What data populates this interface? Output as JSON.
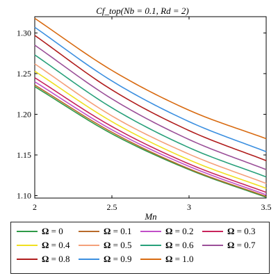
{
  "chart_data": {
    "type": "line",
    "title": "Cf_top(Nb = 0.1, Rd = 2)",
    "xlabel": "Mn",
    "ylabel": "",
    "xlim": [
      2,
      3.5
    ],
    "ylim": [
      1.097,
      1.32
    ],
    "x_ticks": [
      "2",
      "2.5",
      "3",
      "3.5"
    ],
    "y_ticks": [
      "1.10",
      "1.15",
      "1.20",
      "1.25",
      "1.30"
    ],
    "x_tick_values": [
      2,
      2.5,
      3,
      3.5
    ],
    "y_tick_values": [
      1.1,
      1.15,
      1.2,
      1.25,
      1.3
    ],
    "grid": false,
    "legend_position": "bottom",
    "x": [
      2,
      2.5,
      3,
      3.5
    ],
    "series": [
      {
        "name": "Ω = 0",
        "color": "#2e9a48",
        "values": [
          1.234,
          1.176,
          1.132,
          1.098
        ]
      },
      {
        "name": "Ω = 0.1",
        "color": "#b86a2a",
        "values": [
          1.236,
          1.178,
          1.133,
          1.099
        ]
      },
      {
        "name": "Ω = 0.2",
        "color": "#c24fc8",
        "values": [
          1.24,
          1.181,
          1.136,
          1.101
        ]
      },
      {
        "name": "Ω = 0.3",
        "color": "#c8245a",
        "values": [
          1.245,
          1.185,
          1.139,
          1.104
        ]
      },
      {
        "name": "Ω = 0.4",
        "color": "#f0e020",
        "values": [
          1.253,
          1.191,
          1.144,
          1.109
        ]
      },
      {
        "name": "Ω = 0.5",
        "color": "#f4a07a",
        "values": [
          1.262,
          1.198,
          1.151,
          1.115
        ]
      },
      {
        "name": "Ω = 0.6",
        "color": "#27a07a",
        "values": [
          1.273,
          1.208,
          1.159,
          1.123
        ]
      },
      {
        "name": "Ω = 0.7",
        "color": "#9a4f98",
        "values": [
          1.285,
          1.219,
          1.169,
          1.132
        ]
      },
      {
        "name": "Ω = 0.8",
        "color": "#b01c1c",
        "values": [
          1.297,
          1.23,
          1.18,
          1.143
        ]
      },
      {
        "name": "Ω = 0.9",
        "color": "#3b8fe0",
        "values": [
          1.307,
          1.241,
          1.191,
          1.154
        ]
      },
      {
        "name": "Ω = 1.0",
        "color": "#d86a10",
        "values": [
          1.318,
          1.254,
          1.205,
          1.17
        ]
      }
    ]
  }
}
